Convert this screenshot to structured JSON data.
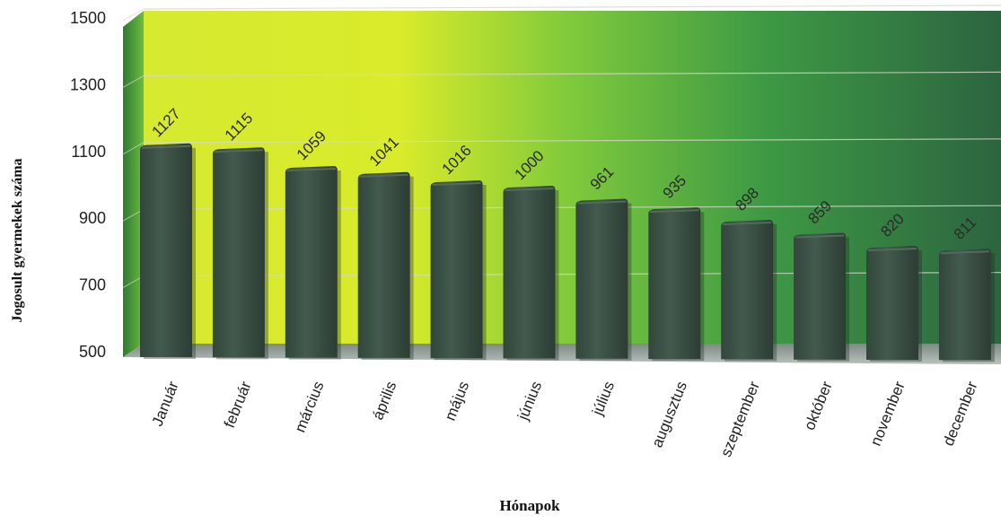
{
  "chart_data": {
    "type": "bar",
    "title": "",
    "xlabel": "Hónapok",
    "ylabel": "Jogosult gyermekek száma",
    "categories": [
      "Január",
      "február",
      "március",
      "április",
      "május",
      "június",
      "július",
      "augusztus",
      "szeptember",
      "október",
      "november",
      "december"
    ],
    "values": [
      1127,
      1115,
      1059,
      1041,
      1016,
      1000,
      961,
      935,
      898,
      859,
      820,
      811
    ],
    "data_labels": [
      "1127",
      "1115",
      "1059",
      "1041",
      "1016",
      "1000",
      "961",
      "935",
      "898",
      "859",
      "820",
      "811"
    ],
    "ylim": [
      500,
      1500
    ],
    "yticks": [
      500,
      700,
      900,
      1100,
      1300,
      1500
    ],
    "ytick_labels": [
      "500",
      "700",
      "900",
      "1100",
      "1300",
      "1500"
    ],
    "grid": true,
    "legend": "none",
    "colors": {
      "bar": "#3e5248",
      "bar_top": "#56695e",
      "wall_left": "#d8ec2c",
      "wall_right": "#2f6a42",
      "side_wall": "#3f8f3a",
      "floor": "#9aa59e",
      "gridline": "#d4dac8"
    }
  }
}
